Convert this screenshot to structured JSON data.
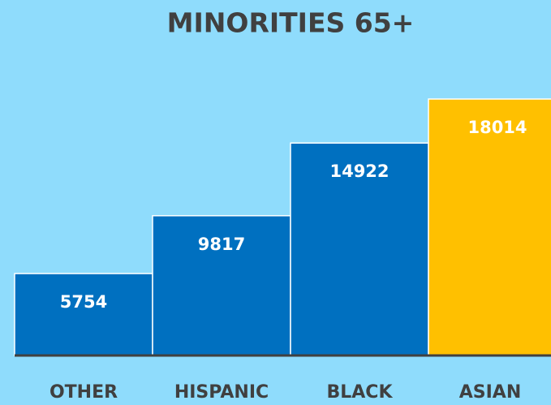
{
  "chart_data": {
    "type": "bar",
    "title": "MINORITIES 65+",
    "categories": [
      "OTHER",
      "HISPANIC",
      "BLACK",
      "ASIAN"
    ],
    "values": [
      5754,
      9817,
      14922,
      18014
    ],
    "colors": [
      "#0070c0",
      "#0070c0",
      "#0070c0",
      "#ffc000"
    ]
  }
}
